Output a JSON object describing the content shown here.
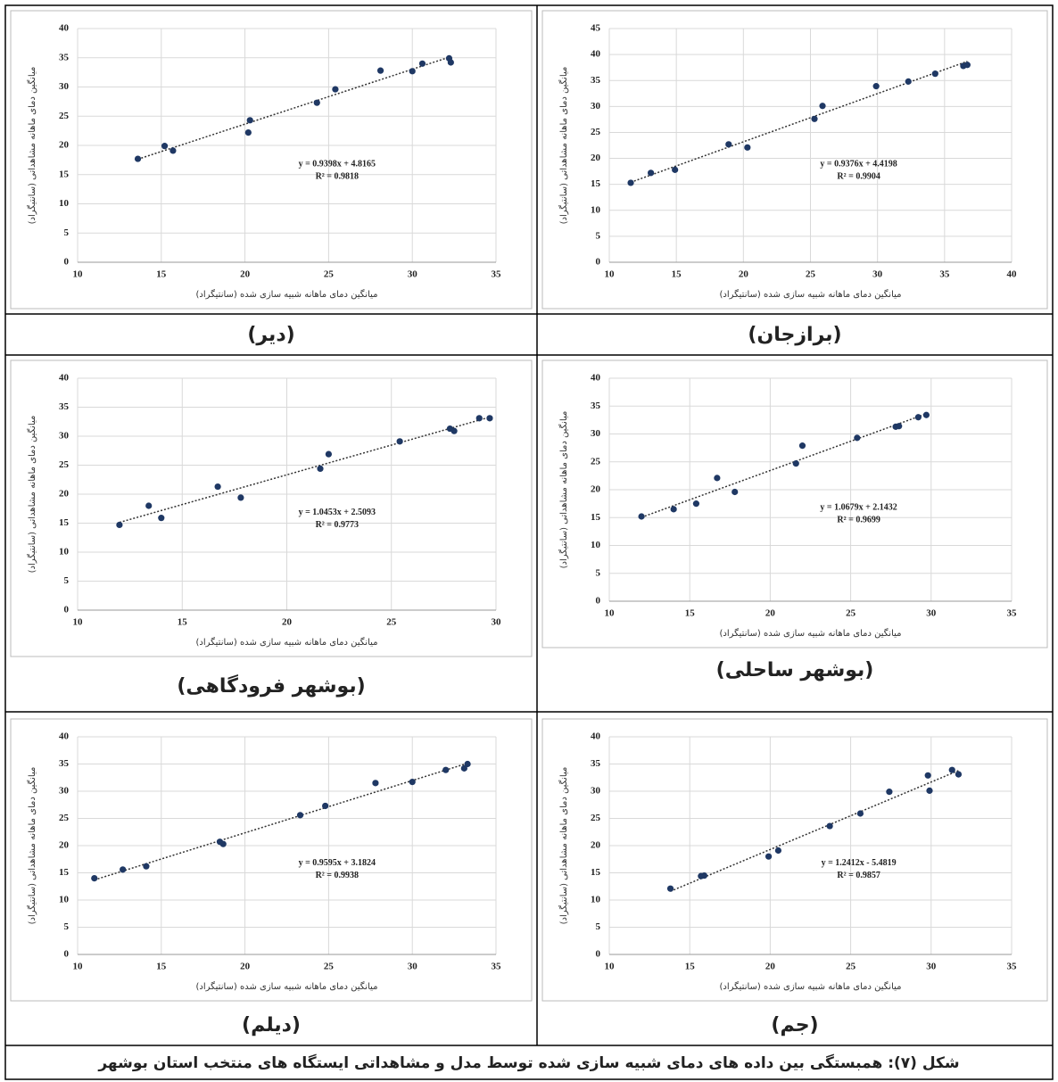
{
  "chart_data": [
    {
      "type": "scatter",
      "label": "(دیر)",
      "xlabel": "میانگین دمای ماهانه شبیه سازی شده (سانتیگراد)",
      "ylabel": "میانگین دمای ماهانه مشاهداتی (سانتیگراد)",
      "x": [
        13.6,
        15.2,
        15.7,
        20.2,
        20.3,
        24.3,
        25.4,
        28.1,
        30.0,
        30.6,
        32.2,
        32.3
      ],
      "values": [
        17.7,
        19.9,
        19.1,
        22.2,
        24.3,
        27.3,
        29.6,
        32.8,
        32.7,
        34.0,
        34.9,
        34.2
      ],
      "color": "#1f3864",
      "xlim": [
        10,
        35
      ],
      "xticks": [
        10,
        15,
        20,
        25,
        30,
        35
      ],
      "ylim": [
        0,
        40
      ],
      "yticks": [
        0,
        5,
        10,
        15,
        20,
        25,
        30,
        35,
        40
      ],
      "grid": true,
      "annotations": [
        "y = 0.9398x + 4.8165",
        "R² = 0.9818"
      ]
    },
    {
      "type": "scatter",
      "label": "(برازجان)",
      "xlabel": "میانگین دمای ماهانه شبیه سازی شده (سانتیگراد)",
      "ylabel": "میانگین دمای ماهانه مشاهداتی (سانتیگراد)",
      "x": [
        11.6,
        13.1,
        14.9,
        18.9,
        20.3,
        25.3,
        25.9,
        29.9,
        32.3,
        34.3,
        36.4,
        36.7
      ],
      "values": [
        15.3,
        17.2,
        17.8,
        22.7,
        22.1,
        27.6,
        30.1,
        33.9,
        34.8,
        36.3,
        37.8,
        38.0
      ],
      "color": "#1f3864",
      "xlim": [
        10,
        40
      ],
      "xticks": [
        10,
        15,
        20,
        25,
        30,
        35,
        40
      ],
      "ylim": [
        0,
        45
      ],
      "yticks": [
        0,
        5,
        10,
        15,
        20,
        25,
        30,
        35,
        40,
        45
      ],
      "grid": true,
      "annotations": [
        "y = 0.9376x + 4.4198",
        "R² = 0.9904"
      ]
    },
    {
      "type": "scatter",
      "label": "(بوشهر فرودگاهی)",
      "xlabel": "میانگین دمای ماهانه شبیه سازی شده (سانتیگراد)",
      "ylabel": "میانگین دمای ماهانه مشاهداتی (سانتیگراد)",
      "x": [
        12.0,
        13.4,
        14.0,
        16.7,
        17.8,
        21.6,
        22.0,
        25.4,
        27.8,
        28.0,
        29.2,
        29.7
      ],
      "values": [
        14.7,
        18.0,
        15.9,
        21.3,
        19.4,
        24.4,
        26.9,
        29.1,
        31.3,
        30.9,
        33.1,
        33.1
      ],
      "color": "#1f3864",
      "xlim": [
        10,
        30
      ],
      "xticks": [
        10,
        15,
        20,
        25,
        30
      ],
      "ylim": [
        0,
        40
      ],
      "yticks": [
        0,
        5,
        10,
        15,
        20,
        25,
        30,
        35,
        40
      ],
      "grid": true,
      "annotations": [
        "y = 1.0453x + 2.5093",
        "R² = 0.9773"
      ]
    },
    {
      "type": "scatter",
      "label": "(بوشهر ساحلی)",
      "xlabel": "میانگین دمای ماهانه شبیه سازی شده (سانتیگراد)",
      "ylabel": "میانگین دمای ماهانه مشاهداتی (سانتیگراد)",
      "x": [
        12.0,
        14.0,
        15.4,
        16.7,
        17.8,
        21.6,
        22.0,
        25.4,
        27.8,
        28.0,
        29.2,
        29.7
      ],
      "values": [
        15.2,
        16.5,
        17.5,
        22.1,
        19.6,
        24.7,
        27.9,
        29.3,
        31.3,
        31.4,
        33.0,
        33.4
      ],
      "color": "#1f3864",
      "xlim": [
        10,
        35
      ],
      "xticks": [
        10,
        15,
        20,
        25,
        30,
        35
      ],
      "ylim": [
        0,
        40
      ],
      "yticks": [
        0,
        5,
        10,
        15,
        20,
        25,
        30,
        35,
        40
      ],
      "grid": true,
      "annotations": [
        "y = 1.0679x + 2.1432",
        "R² = 0.9699"
      ]
    },
    {
      "type": "scatter",
      "label": "(دیلم)",
      "xlabel": "میانگین دمای ماهانه شبیه سازی شده (سانتیگراد)",
      "ylabel": "میانگین دمای ماهانه مشاهداتی (سانتیگراد)",
      "x": [
        11.0,
        12.7,
        14.1,
        18.5,
        18.7,
        23.3,
        24.8,
        27.8,
        30.0,
        32.0,
        33.1,
        33.3
      ],
      "values": [
        14.0,
        15.6,
        16.2,
        20.7,
        20.3,
        25.6,
        27.3,
        31.5,
        31.7,
        33.9,
        34.2,
        35.0
      ],
      "color": "#1f3864",
      "xlim": [
        10,
        35
      ],
      "xticks": [
        10,
        15,
        20,
        25,
        30,
        35
      ],
      "ylim": [
        0,
        40
      ],
      "yticks": [
        0,
        5,
        10,
        15,
        20,
        25,
        30,
        35,
        40
      ],
      "grid": true,
      "annotations": [
        "y = 0.9595x + 3.1824",
        "R² = 0.9938"
      ]
    },
    {
      "type": "scatter",
      "label": "(جم)",
      "xlabel": "میانگین دمای ماهانه شبیه سازی شده (سانتیگراد)",
      "ylabel": "میانگین دمای ماهانه مشاهداتی (سانتیگراد)",
      "x": [
        13.8,
        15.7,
        15.9,
        19.9,
        20.5,
        23.7,
        25.6,
        27.4,
        29.8,
        29.9,
        31.3,
        31.7
      ],
      "values": [
        12.1,
        14.4,
        14.5,
        18.0,
        19.1,
        23.6,
        25.9,
        29.9,
        32.9,
        30.1,
        33.9,
        33.1
      ],
      "color": "#1f3864",
      "xlim": [
        10,
        35
      ],
      "xticks": [
        10,
        15,
        20,
        25,
        30,
        35
      ],
      "ylim": [
        0,
        40
      ],
      "yticks": [
        0,
        5,
        10,
        15,
        20,
        25,
        30,
        35,
        40
      ],
      "grid": true,
      "annotations": [
        "y = 1.2412x - 5.4819",
        "R² = 0.9857"
      ]
    }
  ],
  "caption": "شکل (۷): همبستگی بین داده های دمای شبیه سازی شده توسط مدل و مشاهداتی ایستگاه های منتخب استان بوشهر"
}
